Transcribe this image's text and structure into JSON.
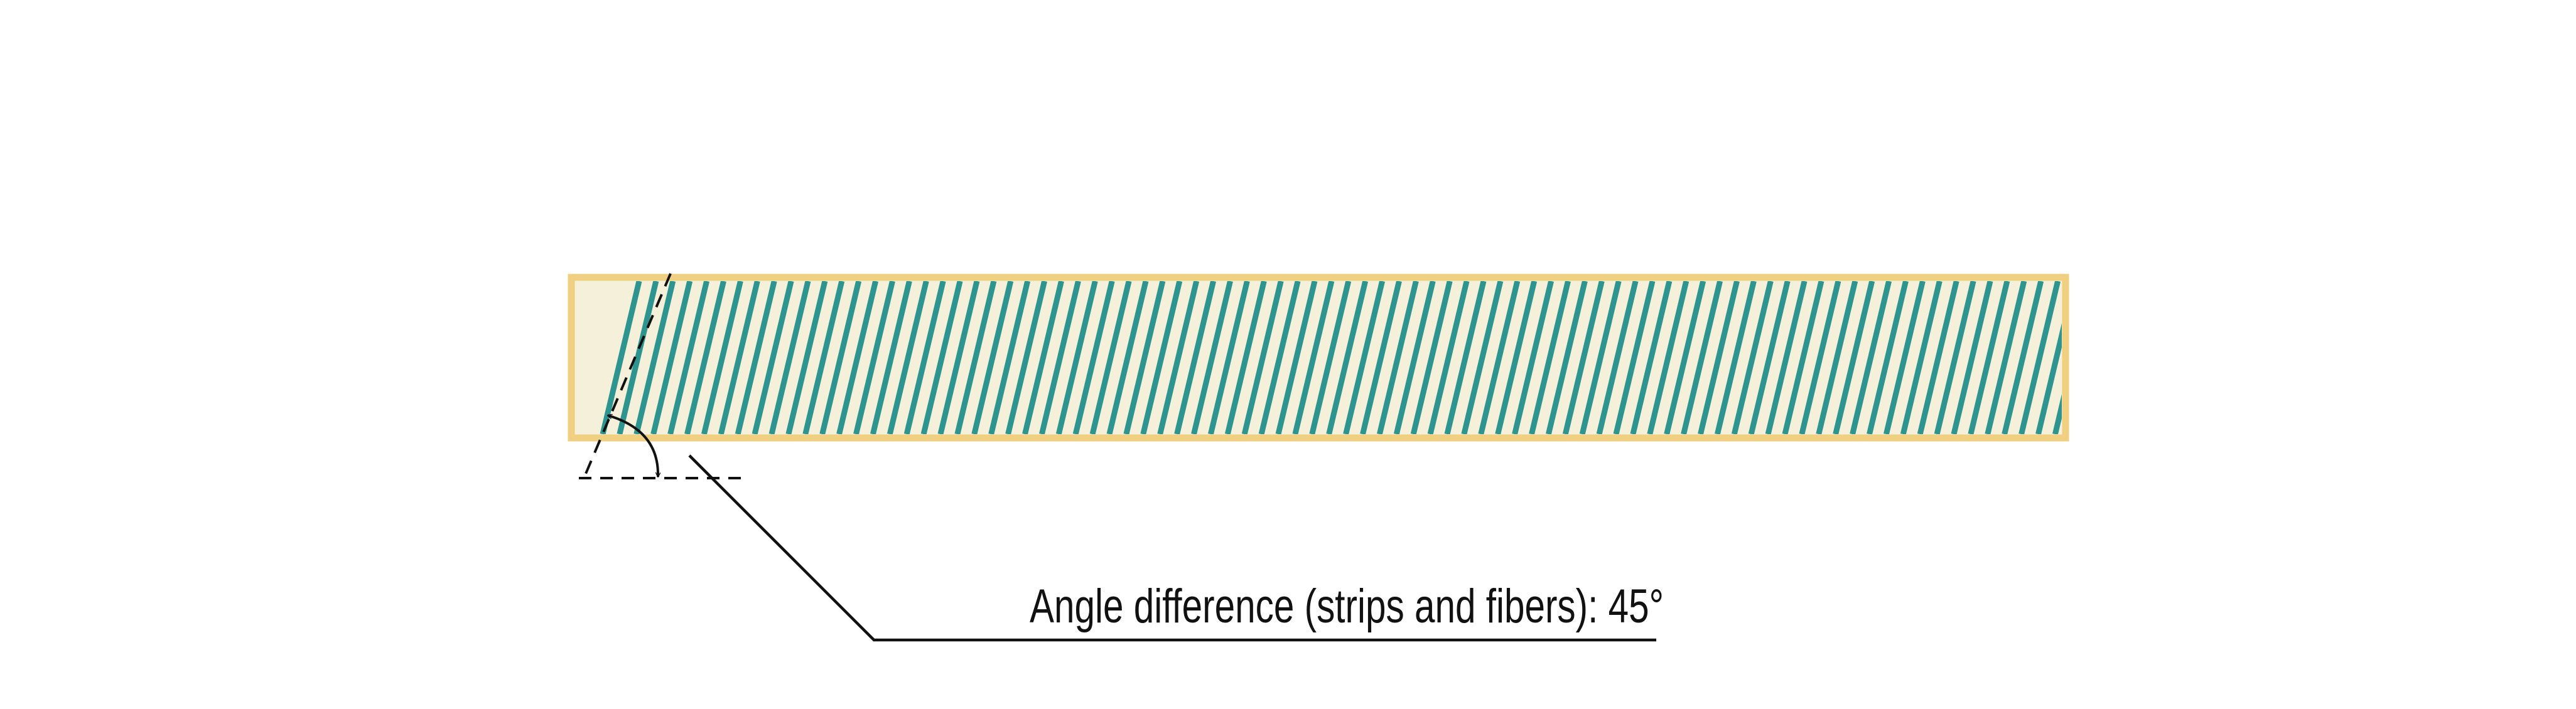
{
  "annotation": {
    "text": "Angle difference (strips and fibers): 45°"
  },
  "colors": {
    "strip_fill": "#f4f0d9",
    "strip_border": "#efcf80",
    "fiber": "#2e9490",
    "line": "#111111"
  }
}
